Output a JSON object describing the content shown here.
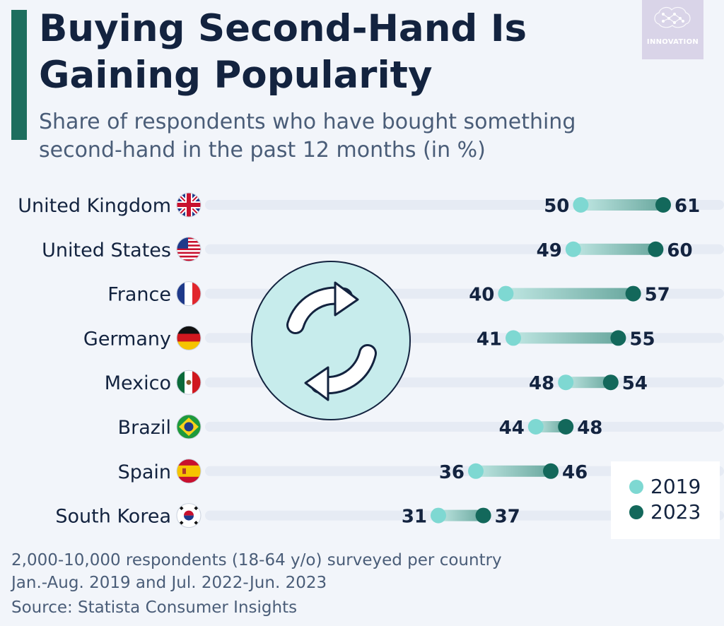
{
  "title": "Buying Second-Hand Is Gaining Popularity",
  "subtitle": "Share of respondents who have bought something second-hand in the past 12 months (in %)",
  "logo": {
    "text": "INNOVATION",
    "icon": "brain-network-icon"
  },
  "colors": {
    "accent": "#1e6e5e",
    "series_2019": "#7ed8d2",
    "series_2023": "#13685b",
    "text": "#13233f",
    "track": "#e6ebf4"
  },
  "chart_data": {
    "type": "dumbbell",
    "categories": [
      "United Kingdom",
      "United States",
      "France",
      "Germany",
      "Mexico",
      "Brazil",
      "Spain",
      "South Korea"
    ],
    "series": [
      {
        "name": "2019",
        "values": [
          50,
          49,
          40,
          41,
          48,
          44,
          36,
          31
        ]
      },
      {
        "name": "2023",
        "values": [
          61,
          60,
          57,
          55,
          54,
          48,
          46,
          37
        ]
      }
    ],
    "flags": [
      "uk-flag-icon",
      "us-flag-icon",
      "france-flag-icon",
      "germany-flag-icon",
      "mexico-flag-icon",
      "brazil-flag-icon",
      "spain-flag-icon",
      "south-korea-flag-icon"
    ],
    "legend_position": "bottom-right",
    "center_icon": "recycle-arrows-icon"
  },
  "legend": {
    "items": [
      {
        "label": "2019"
      },
      {
        "label": "2023"
      }
    ]
  },
  "footnotes": {
    "line1": "2,000-10,000 respondents (18-64 y/o) surveyed per country",
    "line2": "Jan.-Aug. 2019 and Jul. 2022-Jun. 2023",
    "source": "Source: Statista Consumer Insights"
  }
}
